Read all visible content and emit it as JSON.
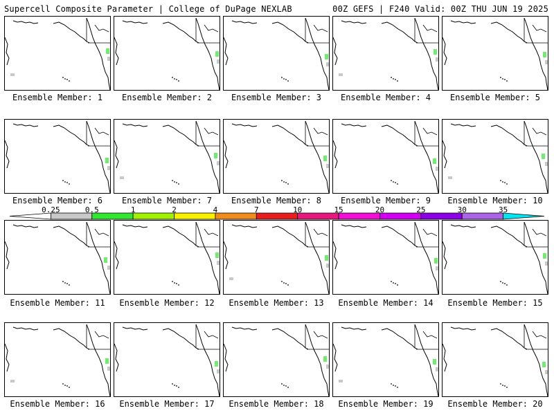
{
  "header": {
    "left_title": "Supercell Composite Parameter | College of DuPage NEXLAB",
    "right_title": "00Z GEFS | F240 Valid: 00Z THU JUN 19 2025"
  },
  "colorbar": {
    "labels": [
      "0.25",
      "0.5",
      "1",
      "2",
      "4",
      "7",
      "10",
      "15",
      "20",
      "25",
      "30",
      "35"
    ],
    "colors": [
      "#ffffff",
      "#c8c8c8",
      "#32e632",
      "#a0f000",
      "#f8f000",
      "#f08c1e",
      "#e61e1e",
      "#e6197d",
      "#f00fd2",
      "#d200f0",
      "#8c00e6",
      "#aa64e6",
      "#00e6f0"
    ]
  },
  "panels": [
    {
      "label": "Ensemble Member: 1"
    },
    {
      "label": "Ensemble Member: 2"
    },
    {
      "label": "Ensemble Member: 3"
    },
    {
      "label": "Ensemble Member: 4"
    },
    {
      "label": "Ensemble Member: 5"
    },
    {
      "label": "Ensemble Member: 6"
    },
    {
      "label": "Ensemble Member: 7"
    },
    {
      "label": "Ensemble Member: 8"
    },
    {
      "label": "Ensemble Member: 9"
    },
    {
      "label": "Ensemble Member: 10"
    },
    {
      "label": "Ensemble Member: 11"
    },
    {
      "label": "Ensemble Member: 12"
    },
    {
      "label": "Ensemble Member: 13"
    },
    {
      "label": "Ensemble Member: 14"
    },
    {
      "label": "Ensemble Member: 15"
    },
    {
      "label": "Ensemble Member: 16"
    },
    {
      "label": "Ensemble Member: 17"
    },
    {
      "label": "Ensemble Member: 18"
    },
    {
      "label": "Ensemble Member: 19"
    },
    {
      "label": "Ensemble Member: 20"
    }
  ]
}
